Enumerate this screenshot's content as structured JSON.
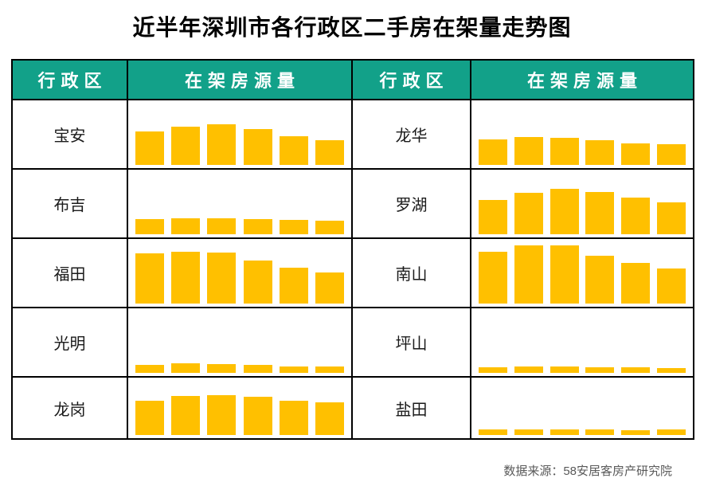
{
  "title": "近半年深圳市各行政区二手房在架量走势图",
  "source_note": "数据来源：58安居客房产研究院",
  "colors": {
    "header_bg": "#12a189",
    "header_text": "#ffffff",
    "bar": "#ffc000",
    "grid_border": "#000000",
    "source_text": "#595959",
    "title_text": "#000000"
  },
  "table": {
    "headers": [
      "行政区",
      "在架房源量",
      "行政区",
      "在架房源量"
    ],
    "rows": [
      {
        "left": "宝安",
        "right": "龙华"
      },
      {
        "left": "布吉",
        "right": "罗湖"
      },
      {
        "left": "福田",
        "right": "南山"
      },
      {
        "left": "光明",
        "right": "坪山"
      },
      {
        "left": "龙岗",
        "right": "盐田"
      }
    ]
  },
  "chart_data": {
    "type": "bar",
    "title": "近半年深圳市各行政区二手房在架量走势图",
    "x": [
      1,
      2,
      3,
      4,
      5,
      6
    ],
    "xlabel": "",
    "ylabel": "在架房源量",
    "axis_labels_shown": false,
    "grid": false,
    "legend": "none",
    "value_unit": "relative bar height (px, estimated from pixels; no numeric axis shown)",
    "series": [
      {
        "name": "宝安",
        "values": [
          42,
          48,
          51,
          45,
          36,
          31
        ]
      },
      {
        "name": "布吉",
        "values": [
          19,
          20,
          20,
          19,
          18,
          17
        ]
      },
      {
        "name": "福田",
        "values": [
          63,
          65,
          64,
          54,
          45,
          39
        ]
      },
      {
        "name": "光明",
        "values": [
          10,
          12,
          11,
          10,
          8,
          8
        ]
      },
      {
        "name": "龙岗",
        "values": [
          43,
          49,
          50,
          48,
          43,
          41
        ]
      },
      {
        "name": "龙华",
        "values": [
          32,
          35,
          34,
          31,
          27,
          26
        ]
      },
      {
        "name": "罗湖",
        "values": [
          43,
          52,
          57,
          53,
          46,
          40
        ]
      },
      {
        "name": "南山",
        "values": [
          65,
          73,
          73,
          60,
          51,
          44
        ]
      },
      {
        "name": "坪山",
        "values": [
          7,
          8,
          8,
          7,
          7,
          6
        ]
      },
      {
        "name": "盐田",
        "values": [
          7,
          7,
          7,
          7,
          6,
          7
        ]
      }
    ]
  }
}
